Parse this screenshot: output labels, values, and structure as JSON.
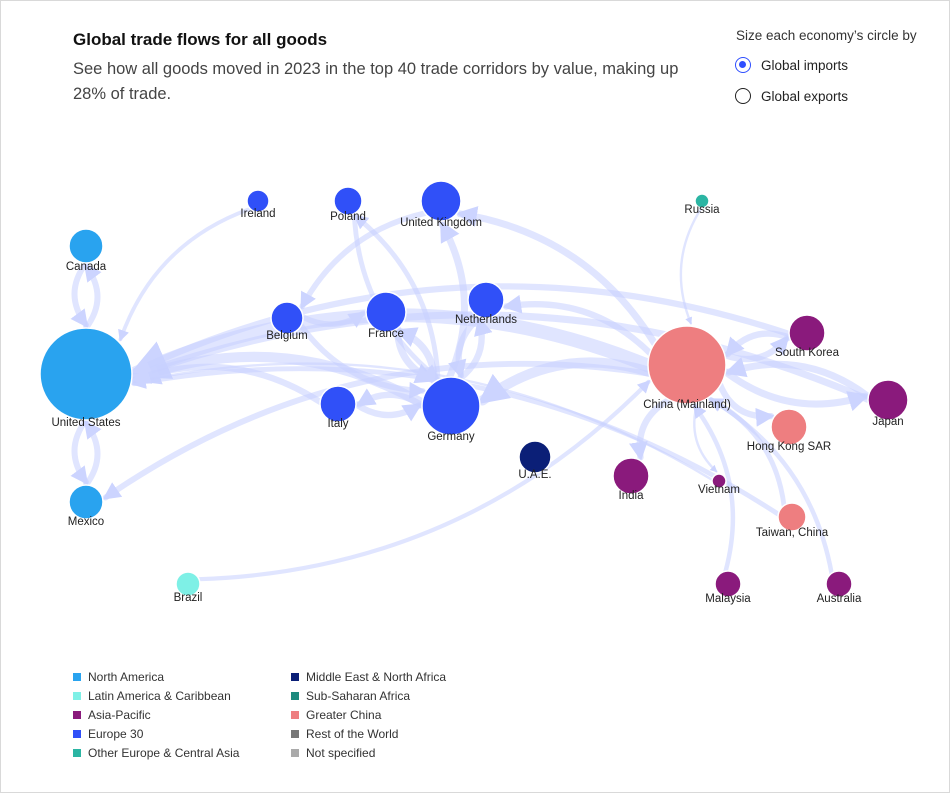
{
  "header": {
    "title": "Global trade flows for all goods",
    "subtitle": "See how all goods moved in 2023 in the top 40 trade corridors by value, making up 28% of trade."
  },
  "controls": {
    "size_label": "Size each economy’s circle by",
    "options": [
      {
        "label": "Global imports",
        "selected": true
      },
      {
        "label": "Global exports",
        "selected": false
      }
    ]
  },
  "legend": [
    {
      "label": "North America",
      "color": "#29a3ef"
    },
    {
      "label": "Latin America & Caribbean",
      "color": "#7ef0e6"
    },
    {
      "label": "Asia-Pacific",
      "color": "#8a1a7c"
    },
    {
      "label": "Europe 30",
      "color": "#3050f8"
    },
    {
      "label": "Other Europe & Central Asia",
      "color": "#2bb5a3"
    },
    {
      "label": "Middle East & North Africa",
      "color": "#0b1f77"
    },
    {
      "label": "Sub-Saharan Africa",
      "color": "#1d8a7e"
    },
    {
      "label": "Greater China",
      "color": "#ee7e80"
    },
    {
      "label": "Rest of the World",
      "color": "#777777"
    },
    {
      "label": "Not specified",
      "color": "#aaaaaa"
    }
  ],
  "chart_data": {
    "type": "network",
    "size_measure": "Global imports",
    "nodes": [
      {
        "id": "United States",
        "region": "North America"
      },
      {
        "id": "Canada",
        "region": "North America"
      },
      {
        "id": "Mexico",
        "region": "North America"
      },
      {
        "id": "Brazil",
        "region": "Latin America & Caribbean"
      },
      {
        "id": "Ireland",
        "region": "Europe 30"
      },
      {
        "id": "Poland",
        "region": "Europe 30"
      },
      {
        "id": "United Kingdom",
        "region": "Europe 30"
      },
      {
        "id": "Belgium",
        "region": "Europe 30"
      },
      {
        "id": "France",
        "region": "Europe 30"
      },
      {
        "id": "Netherlands",
        "region": "Europe 30"
      },
      {
        "id": "Italy",
        "region": "Europe 30"
      },
      {
        "id": "Germany",
        "region": "Europe 30"
      },
      {
        "id": "Russia",
        "region": "Other Europe & Central Asia"
      },
      {
        "id": "U.A.E.",
        "region": "Middle East & North Africa"
      },
      {
        "id": "China (Mainland)",
        "region": "Greater China"
      },
      {
        "id": "Hong Kong SAR",
        "region": "Greater China"
      },
      {
        "id": "Taiwan, China",
        "region": "Greater China"
      },
      {
        "id": "South Korea",
        "region": "Asia-Pacific"
      },
      {
        "id": "Japan",
        "region": "Asia-Pacific"
      },
      {
        "id": "India",
        "region": "Asia-Pacific"
      },
      {
        "id": "Vietnam",
        "region": "Asia-Pacific"
      },
      {
        "id": "Malaysia",
        "region": "Asia-Pacific"
      },
      {
        "id": "Australia",
        "region": "Asia-Pacific"
      }
    ],
    "flows": [
      [
        "Canada",
        "United States"
      ],
      [
        "United States",
        "Canada"
      ],
      [
        "Mexico",
        "United States"
      ],
      [
        "United States",
        "Mexico"
      ],
      [
        "China (Mainland)",
        "United States"
      ],
      [
        "Germany",
        "United States"
      ],
      [
        "Japan",
        "United States"
      ],
      [
        "South Korea",
        "United States"
      ],
      [
        "Vietnam",
        "United States"
      ],
      [
        "Taiwan, China",
        "United States"
      ],
      [
        "Ireland",
        "United States"
      ],
      [
        "Italy",
        "United States"
      ],
      [
        "China (Mainland)",
        "Mexico"
      ],
      [
        "Brazil",
        "China (Mainland)"
      ],
      [
        "Russia",
        "China (Mainland)"
      ],
      [
        "China (Mainland)",
        "Hong Kong SAR"
      ],
      [
        "China (Mainland)",
        "Japan"
      ],
      [
        "China (Mainland)",
        "South Korea"
      ],
      [
        "South Korea",
        "China (Mainland)"
      ],
      [
        "Japan",
        "China (Mainland)"
      ],
      [
        "Taiwan, China",
        "China (Mainland)"
      ],
      [
        "Malaysia",
        "China (Mainland)"
      ],
      [
        "Australia",
        "China (Mainland)"
      ],
      [
        "China (Mainland)",
        "Vietnam"
      ],
      [
        "China (Mainland)",
        "India"
      ],
      [
        "China (Mainland)",
        "Germany"
      ],
      [
        "China (Mainland)",
        "Netherlands"
      ],
      [
        "China (Mainland)",
        "United Kingdom"
      ],
      [
        "Netherlands",
        "Germany"
      ],
      [
        "Germany",
        "France"
      ],
      [
        "France",
        "Germany"
      ],
      [
        "Poland",
        "Germany"
      ],
      [
        "Belgium",
        "Germany"
      ],
      [
        "Italy",
        "Germany"
      ],
      [
        "Germany",
        "Netherlands"
      ],
      [
        "Germany",
        "Poland"
      ],
      [
        "Germany",
        "Italy"
      ],
      [
        "United Kingdom",
        "Belgium"
      ],
      [
        "Belgium",
        "France"
      ],
      [
        "Germany",
        "United Kingdom"
      ]
    ]
  }
}
